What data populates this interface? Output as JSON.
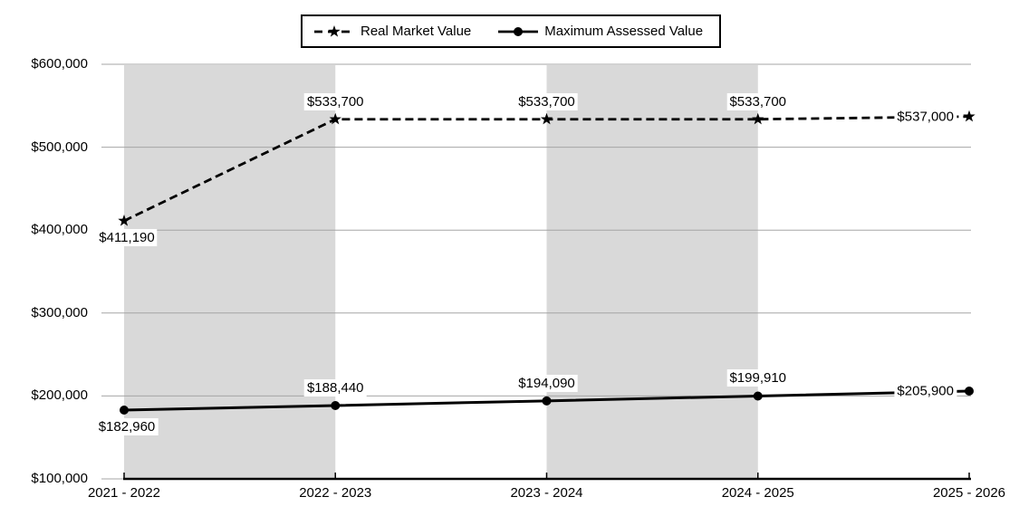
{
  "legend": {
    "items": [
      {
        "label": "Real Market Value",
        "line": "dashed",
        "marker": "star"
      },
      {
        "label": "Maximum Assessed Value",
        "line": "solid",
        "marker": "circle"
      }
    ]
  },
  "chart_data": {
    "type": "line",
    "title": "",
    "categories": [
      "2021 - 2022",
      "2022 - 2023",
      "2023 - 2024",
      "2024 - 2025",
      "2025 - 2026"
    ],
    "series": [
      {
        "name": "Real Market Value",
        "line_style": "dashed",
        "marker": "star",
        "color": "#000000",
        "values": [
          411190,
          533700,
          533700,
          533700,
          537000
        ],
        "data_labels": [
          "$411,190",
          "$533,700",
          "$533,700",
          "$533,700",
          "$537,000"
        ],
        "label_positions": [
          "below",
          "above",
          "above",
          "above",
          "left"
        ]
      },
      {
        "name": "Maximum Assessed Value",
        "line_style": "solid",
        "marker": "circle",
        "color": "#000000",
        "values": [
          182960,
          188440,
          194090,
          199910,
          205900
        ],
        "data_labels": [
          "$182,960",
          "$188,440",
          "$194,090",
          "$199,910",
          "$205,900"
        ],
        "label_positions": [
          "below",
          "above",
          "above",
          "above",
          "left"
        ]
      }
    ],
    "ylim": [
      100000,
      600000
    ],
    "ytick_step": 100000,
    "ytick_labels": [
      "$100,000",
      "$200,000",
      "$300,000",
      "$400,000",
      "$500,000",
      "$600,000"
    ],
    "grid": true,
    "legend_position": "top",
    "plot_bands": {
      "color": "#d9d9d9",
      "between_category_indices": [
        [
          0,
          1
        ],
        [
          2,
          3
        ]
      ]
    },
    "gridline_color": "#a6a6a6",
    "axis_color": "#000000",
    "background_color": "#ffffff"
  }
}
